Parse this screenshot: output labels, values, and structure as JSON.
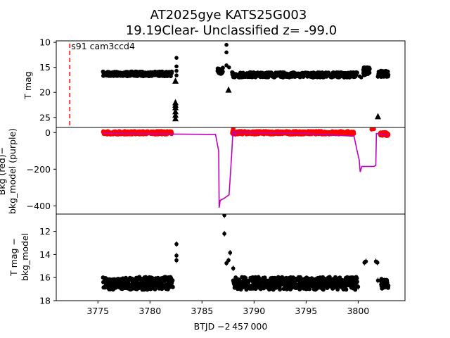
{
  "chart_data": {
    "type": "scatter",
    "title_line1": "AT2025gye  KATS25G003",
    "title_line2": "19.19Clear- Unclassified z= -99.0",
    "xlabel": "BTJD −2 457 000",
    "xlim": [
      3771,
      3804.5
    ],
    "xticks": [
      3775,
      3780,
      3785,
      3790,
      3795,
      3800
    ],
    "marker_x": 3772.3,
    "marker_label": "s91 cam3ccd4",
    "panels": [
      {
        "id": "tmag",
        "ylabel": "T mag",
        "ylim": [
          27,
          9.7
        ],
        "yticks": [
          10,
          15,
          20,
          25
        ],
        "bands": [
          {
            "x": [
              3775.5,
              3782.1
            ],
            "y": 16.3,
            "spread": 0.45,
            "color": "#000000"
          },
          {
            "x": [
              3787.9,
              3799.9
            ],
            "y": 16.5,
            "spread": 0.5,
            "color": "#000000"
          },
          {
            "x": [
              3786.5,
              3787.0
            ],
            "y": 15.7,
            "spread": 0.6,
            "color": "#000000"
          },
          {
            "x": [
              3800.5,
              3801.1
            ],
            "y": 15.8,
            "spread": 0.8,
            "color": "#000000"
          },
          {
            "x": [
              3801.9,
              3802.9
            ],
            "y": 16.3,
            "spread": 0.6,
            "color": "#000000"
          }
        ],
        "points": [
          [
            3782.55,
            13.1
          ],
          [
            3782.55,
            14.8
          ],
          [
            3782.55,
            15.7
          ],
          [
            3782.55,
            16.6
          ],
          [
            3787.35,
            10.5
          ],
          [
            3787.35,
            12.0
          ],
          [
            3787.35,
            14.6
          ],
          [
            3787.6,
            15.0
          ],
          [
            3800.15,
            16.8
          ],
          [
            3800.3,
            17.0
          ],
          [
            3802.2,
            16.9
          ]
        ],
        "triangles": [
          [
            3782.45,
            17.7
          ],
          [
            3782.45,
            22.0
          ],
          [
            3782.45,
            22.5
          ],
          [
            3782.45,
            23.0
          ],
          [
            3782.45,
            23.8
          ],
          [
            3782.45,
            24.5
          ],
          [
            3782.45,
            25.2
          ],
          [
            3787.55,
            19.5
          ],
          [
            3801.9,
            24.8
          ]
        ]
      },
      {
        "id": "bkg",
        "ylabel_line1": "Bkg (red)−",
        "ylabel_line2": "bkg_model (purple)",
        "ylim": [
          -445,
          28
        ],
        "yticks": [
          0,
          -200,
          -400
        ],
        "bands": [
          {
            "x": [
              3775.5,
              3782.1
            ],
            "y": -1,
            "spread": 9,
            "color": "#ff0000"
          },
          {
            "x": [
              3787.9,
              3799.6
            ],
            "y": -1,
            "spread": 9,
            "color": "#ff0000"
          },
          {
            "x": [
              3802.1,
              3802.9
            ],
            "y": -8,
            "spread": 10,
            "color": "#ff0000"
          }
        ],
        "model_line": [
          [
            3775.5,
            -4
          ],
          [
            3782.6,
            -8
          ],
          [
            3786.3,
            -10
          ],
          [
            3786.6,
            -100
          ],
          [
            3786.65,
            -410
          ],
          [
            3786.75,
            -370
          ],
          [
            3787.1,
            -360
          ],
          [
            3787.6,
            -340
          ],
          [
            3787.85,
            -120
          ],
          [
            3788.0,
            38
          ],
          [
            3788.2,
            -15
          ],
          [
            3788.3,
            2
          ],
          [
            3795.0,
            -5
          ],
          [
            3799.6,
            -20
          ],
          [
            3799.9,
            -100
          ],
          [
            3800.1,
            -150
          ],
          [
            3800.2,
            -215
          ],
          [
            3800.35,
            -185
          ],
          [
            3801.5,
            -185
          ],
          [
            3801.7,
            -180
          ],
          [
            3801.75,
            -5
          ],
          [
            3802.9,
            -15
          ]
        ],
        "extra_points": [
          [
            3788.0,
            20
          ],
          [
            3801.5,
            20
          ],
          [
            3801.3,
            18
          ]
        ]
      },
      {
        "id": "diff",
        "ylabel_line1": "T mag −",
        "ylabel_line2": "bkg_model",
        "ylim": [
          18,
          10.5
        ],
        "yticks": [
          12,
          14,
          16,
          18
        ],
        "bands": [
          {
            "x": [
              3775.5,
              3782.2
            ],
            "y": 16.5,
            "spread": 0.55,
            "color": "#000000"
          },
          {
            "x": [
              3788.0,
              3799.9
            ],
            "y": 16.5,
            "spread": 0.55,
            "color": "#000000"
          },
          {
            "x": [
              3802.2,
              3802.9
            ],
            "y": 16.5,
            "spread": 0.45,
            "color": "#000000"
          }
        ],
        "points": [
          [
            3782.55,
            13.1
          ],
          [
            3782.55,
            14.1
          ],
          [
            3782.55,
            14.5
          ],
          [
            3787.15,
            10.6
          ],
          [
            3787.15,
            12.2
          ],
          [
            3787.35,
            14.75
          ],
          [
            3787.55,
            14.5
          ],
          [
            3787.7,
            13.85
          ],
          [
            3788.0,
            15.2
          ],
          [
            3800.6,
            14.7
          ],
          [
            3800.75,
            14.6
          ],
          [
            3801.7,
            14.6
          ],
          [
            3801.85,
            14.7
          ],
          [
            3801.9,
            16.25
          ],
          [
            3800.0,
            16.8
          ]
        ]
      }
    ]
  }
}
